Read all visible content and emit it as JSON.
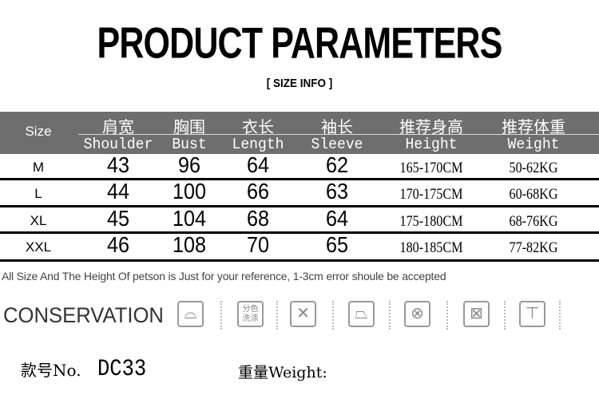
{
  "title": "PRODUCT PARAMETERS",
  "subtitle": "[ SIZE  INFO ]",
  "table": {
    "header_color": "#6e6e6e",
    "size_label": "Size",
    "columns": [
      {
        "zh": "肩宽",
        "en": "Shoulder"
      },
      {
        "zh": "胸围",
        "en": "Bust"
      },
      {
        "zh": "衣长",
        "en": "Length"
      },
      {
        "zh": "袖长",
        "en": "Sleeve"
      },
      {
        "zh": "推荐身高",
        "en": "Height"
      },
      {
        "zh": "推荐体重",
        "en": "Weight"
      }
    ],
    "rows": [
      [
        "M",
        "43",
        "96",
        "64",
        "62",
        "165-170CM",
        "50-62KG"
      ],
      [
        "L",
        "44",
        "100",
        "66",
        "63",
        "170-175CM",
        "60-68KG"
      ],
      [
        "XL",
        "45",
        "104",
        "68",
        "64",
        "175-180CM",
        "68-76KG"
      ],
      [
        "XXL",
        "46",
        "108",
        "70",
        "65",
        "180-185CM",
        "77-82KG"
      ]
    ]
  },
  "note": "All Size And The Height Of petson is Just for your reference, 1-3cm error shoule be accepted",
  "conservation": {
    "label": "CONSERVATION",
    "icons": [
      "hand-wash-icon",
      "wash-separately-icon",
      "no-bleach-icon",
      "iron-low-icon",
      "no-dry-clean-icon",
      "no-tumble-dry-icon",
      "dry-flat-icon"
    ],
    "wash_separately_text": "分色洗涤"
  },
  "footer": {
    "style_label": "款号No.",
    "style_value": "DC33",
    "weight_label": "重量Weight:"
  }
}
